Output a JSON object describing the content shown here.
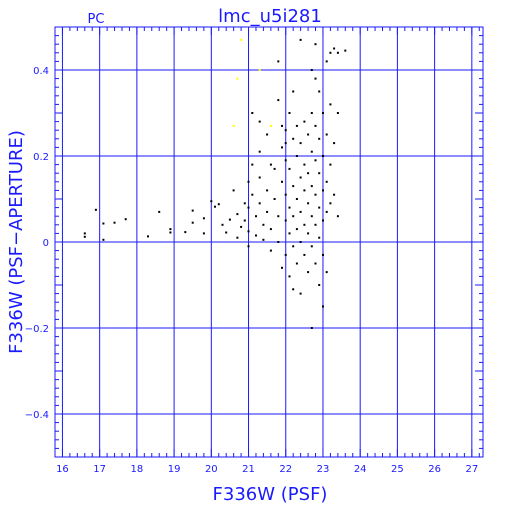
{
  "chart_data": {
    "type": "scatter",
    "title": "lmc_u5i281",
    "corner_label": "PC",
    "xlabel": "F336W (PSF)",
    "ylabel": "F336W (PSF−APERTURE)",
    "xlim": [
      15.8,
      27.3
    ],
    "ylim": [
      -0.5,
      0.5
    ],
    "xticks": [
      16,
      17,
      18,
      19,
      20,
      21,
      22,
      23,
      24,
      25,
      26,
      27
    ],
    "yticks": [
      -0.4,
      -0.2,
      0,
      0.2,
      0.4
    ],
    "ytick_labels": [
      "−0.4",
      "−0.2",
      "0",
      "0.2",
      "0.4"
    ],
    "grid": true,
    "colors": {
      "axis": "#1a1aff",
      "points": "#000000",
      "highlight": "#ffff00"
    },
    "series": [
      {
        "color": "#000000",
        "points": [
          [
            16.6,
            0.02
          ],
          [
            16.6,
            0.012
          ],
          [
            16.9,
            0.075
          ],
          [
            17.1,
            0.043
          ],
          [
            17.1,
            0.005
          ],
          [
            17.4,
            0.045
          ],
          [
            17.7,
            0.053
          ],
          [
            18.3,
            0.013
          ],
          [
            18.6,
            0.07
          ],
          [
            18.9,
            0.03
          ],
          [
            18.9,
            0.022
          ],
          [
            19.3,
            0.023
          ],
          [
            19.5,
            0.073
          ],
          [
            19.5,
            0.045
          ],
          [
            19.8,
            0.055
          ],
          [
            19.8,
            0.02
          ],
          [
            20.0,
            0.095
          ],
          [
            20.1,
            0.082
          ],
          [
            20.2,
            0.088
          ],
          [
            20.3,
            0.04
          ],
          [
            20.4,
            0.022
          ],
          [
            20.5,
            0.052
          ],
          [
            20.6,
            0.12
          ],
          [
            20.7,
            0.065
          ],
          [
            20.7,
            0.01
          ],
          [
            20.8,
            0.035
          ],
          [
            20.9,
            0.09
          ],
          [
            20.9,
            0.05
          ],
          [
            21.0,
            0.14
          ],
          [
            21.0,
            0.08
          ],
          [
            21.0,
            0.025
          ],
          [
            21.0,
            -0.01
          ],
          [
            21.1,
            0.18
          ],
          [
            21.1,
            0.3
          ],
          [
            21.1,
            0.11
          ],
          [
            21.2,
            0.06
          ],
          [
            21.2,
            0.015
          ],
          [
            21.3,
            0.28
          ],
          [
            21.3,
            0.21
          ],
          [
            21.3,
            0.15
          ],
          [
            21.3,
            0.09
          ],
          [
            21.4,
            0.04
          ],
          [
            21.4,
            0.005
          ],
          [
            21.5,
            0.25
          ],
          [
            21.5,
            0.12
          ],
          [
            21.5,
            0.07
          ],
          [
            21.6,
            0.03
          ],
          [
            21.6,
            -0.02
          ],
          [
            21.7,
            0.17
          ],
          [
            21.7,
            0.1
          ],
          [
            21.8,
            0.33
          ],
          [
            21.8,
            0.06
          ],
          [
            21.8,
            0.0
          ],
          [
            21.9,
            0.22
          ],
          [
            21.9,
            0.14
          ],
          [
            21.9,
            -0.06
          ],
          [
            22.0,
            0.26
          ],
          [
            22.0,
            0.19
          ],
          [
            22.0,
            0.11
          ],
          [
            22.0,
            0.05
          ],
          [
            22.0,
            -0.03
          ],
          [
            22.1,
            0.3
          ],
          [
            22.1,
            0.17
          ],
          [
            22.1,
            0.08
          ],
          [
            22.1,
            0.02
          ],
          [
            22.1,
            -0.08
          ],
          [
            22.2,
            0.24
          ],
          [
            22.2,
            0.13
          ],
          [
            22.2,
            0.06
          ],
          [
            22.2,
            -0.01
          ],
          [
            22.2,
            -0.11
          ],
          [
            22.3,
            0.27
          ],
          [
            22.3,
            0.2
          ],
          [
            22.3,
            0.1
          ],
          [
            22.3,
            0.03
          ],
          [
            22.3,
            -0.05
          ],
          [
            22.4,
            0.23
          ],
          [
            22.4,
            0.15
          ],
          [
            22.4,
            0.07
          ],
          [
            22.4,
            0.0
          ],
          [
            22.4,
            -0.12
          ],
          [
            22.5,
            0.28
          ],
          [
            22.5,
            0.18
          ],
          [
            22.5,
            0.12
          ],
          [
            22.5,
            0.04
          ],
          [
            22.5,
            -0.03
          ],
          [
            22.6,
            0.25
          ],
          [
            22.6,
            0.16
          ],
          [
            22.6,
            0.09
          ],
          [
            22.6,
            0.02
          ],
          [
            22.6,
            -0.07
          ],
          [
            22.7,
            0.4
          ],
          [
            22.7,
            0.3
          ],
          [
            22.7,
            0.21
          ],
          [
            22.7,
            0.13
          ],
          [
            22.7,
            0.06
          ],
          [
            22.7,
            -0.01
          ],
          [
            22.7,
            -0.2
          ],
          [
            22.8,
            0.46
          ],
          [
            22.8,
            0.38
          ],
          [
            22.8,
            0.27
          ],
          [
            22.8,
            0.19
          ],
          [
            22.8,
            0.11
          ],
          [
            22.8,
            0.04
          ],
          [
            22.8,
            -0.05
          ],
          [
            22.9,
            0.35
          ],
          [
            22.9,
            0.24
          ],
          [
            22.9,
            0.16
          ],
          [
            22.9,
            0.08
          ],
          [
            22.9,
            0.01
          ],
          [
            22.9,
            -0.1
          ],
          [
            23.0,
            0.3
          ],
          [
            23.0,
            0.2
          ],
          [
            23.0,
            0.12
          ],
          [
            23.0,
            0.05
          ],
          [
            23.0,
            -0.03
          ],
          [
            23.0,
            -0.15
          ],
          [
            23.1,
            0.42
          ],
          [
            23.1,
            0.25
          ],
          [
            23.1,
            0.14
          ],
          [
            23.1,
            0.07
          ],
          [
            23.1,
            -0.07
          ],
          [
            23.2,
            0.44
          ],
          [
            23.2,
            0.32
          ],
          [
            23.2,
            0.18
          ],
          [
            23.2,
            0.09
          ],
          [
            23.3,
            0.45
          ],
          [
            23.3,
            0.23
          ],
          [
            23.3,
            0.11
          ],
          [
            23.4,
            0.44
          ],
          [
            23.4,
            0.3
          ],
          [
            23.4,
            0.06
          ],
          [
            23.6,
            0.445
          ],
          [
            21.8,
            0.42
          ],
          [
            22.4,
            0.47
          ],
          [
            22.0,
            0.23
          ],
          [
            21.6,
            0.18
          ],
          [
            22.2,
            0.35
          ],
          [
            21.9,
            0.27
          ]
        ]
      },
      {
        "color": "#ffff00",
        "points": [
          [
            20.6,
            0.27
          ],
          [
            20.7,
            0.38
          ],
          [
            21.3,
            0.4
          ],
          [
            21.6,
            0.27
          ],
          [
            20.8,
            0.47
          ]
        ]
      }
    ]
  }
}
